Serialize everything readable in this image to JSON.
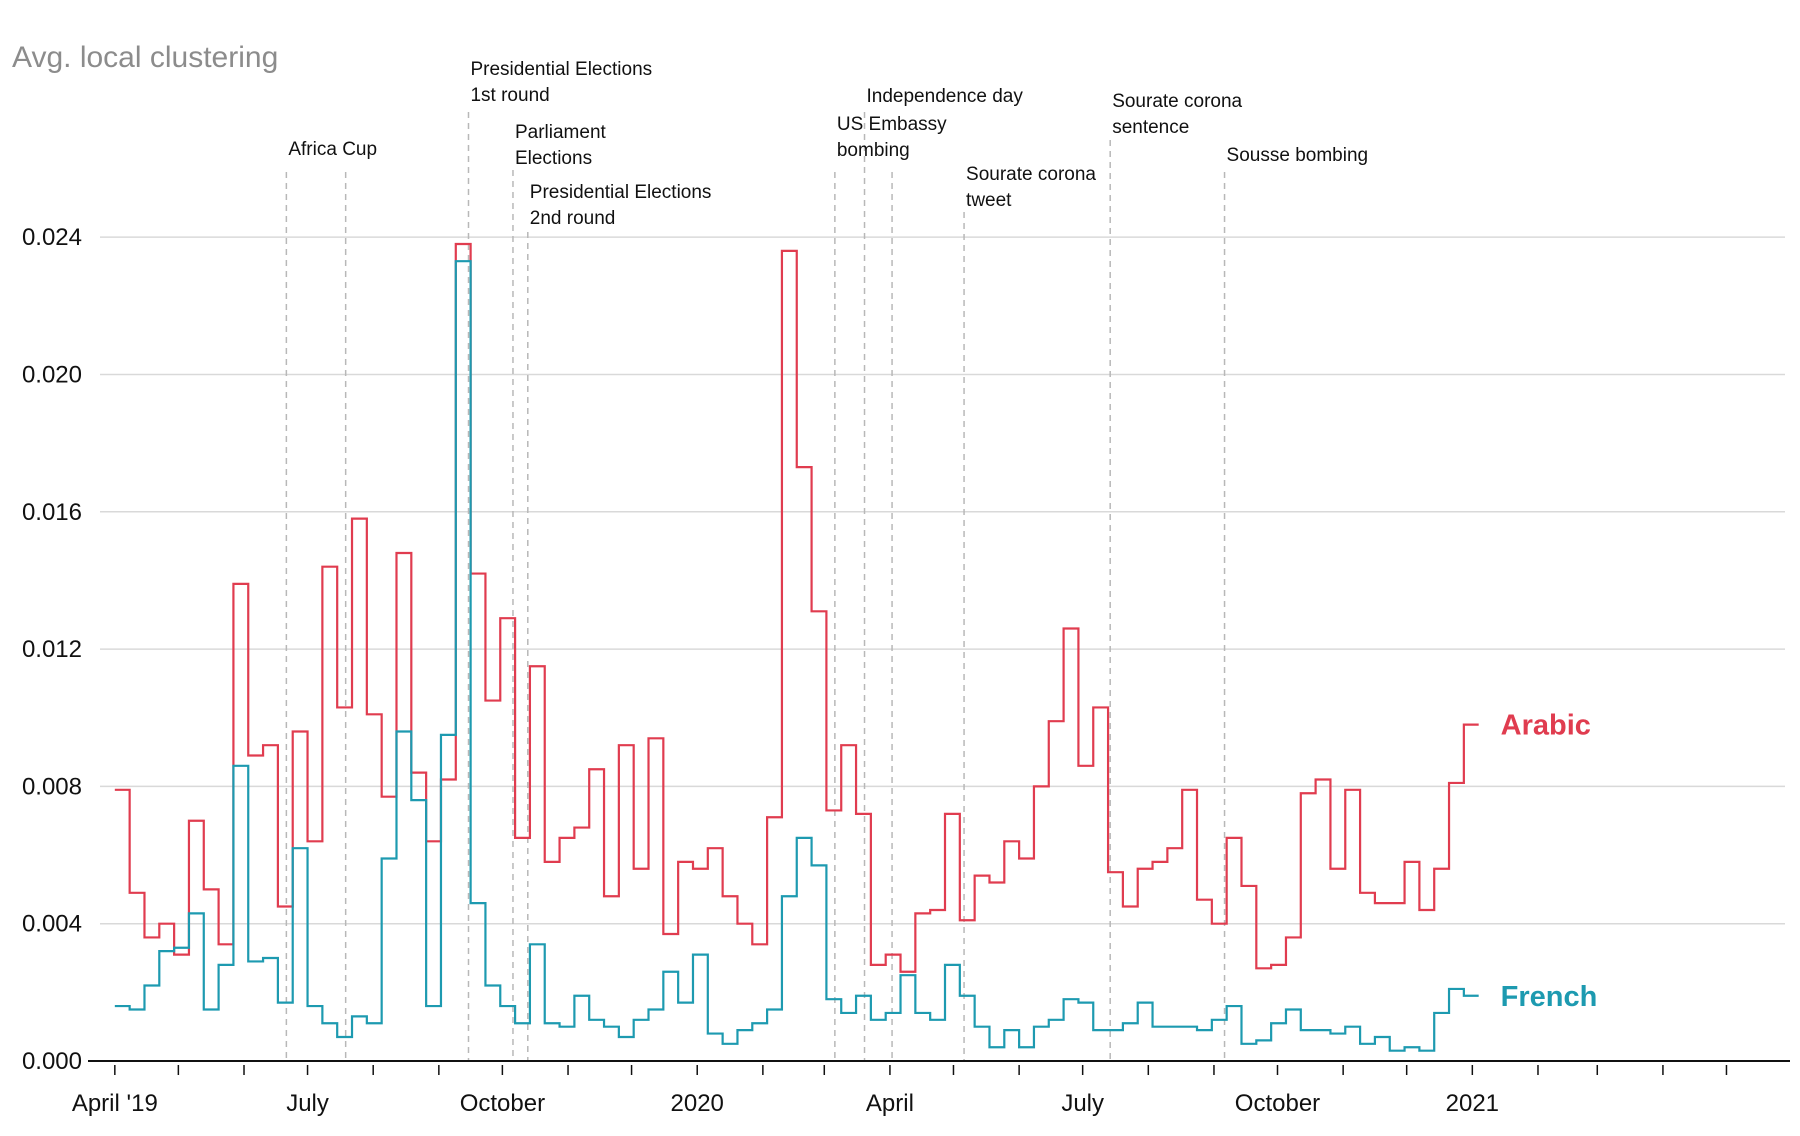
{
  "chart_data": {
    "type": "line",
    "step": true,
    "title": "Avg. local clustering",
    "ylim": [
      0,
      0.0245
    ],
    "yticks": [
      0,
      0.004,
      0.008,
      0.012,
      0.016,
      0.02,
      0.024
    ],
    "ytick_labels": [
      "0.000",
      "0.004",
      "0.008",
      "0.012",
      "0.016",
      "0.020",
      "0.024"
    ],
    "xlim": [
      "2019-03-25",
      "2021-05-31"
    ],
    "xtick_labels": [
      {
        "date": "2019-04-01",
        "label": "April '19"
      },
      {
        "date": "2019-07-01",
        "label": "July"
      },
      {
        "date": "2019-10-01",
        "label": "October"
      },
      {
        "date": "2020-01-01",
        "label": "2020"
      },
      {
        "date": "2020-04-01",
        "label": "April"
      },
      {
        "date": "2020-07-01",
        "label": "July"
      },
      {
        "date": "2020-10-01",
        "label": "October"
      },
      {
        "date": "2021-01-01",
        "label": "2021"
      }
    ],
    "grid": true,
    "events": [
      {
        "date": "2019-06-21",
        "label": [
          "Africa Cup"
        ]
      },
      {
        "date": "2019-07-19",
        "label": []
      },
      {
        "date": "2019-09-15",
        "label": [
          "Presidential Elections",
          "1st round"
        ]
      },
      {
        "date": "2019-10-06",
        "label": [
          "Parliament",
          "Elections"
        ]
      },
      {
        "date": "2019-10-13",
        "label": [
          "Presidential Elections",
          "2nd round"
        ]
      },
      {
        "date": "2020-03-20",
        "label": [
          "Independence day"
        ]
      },
      {
        "date": "2020-04-02",
        "label": []
      },
      {
        "date": "2020-03-06",
        "label": [
          "US Embassy",
          "bombing"
        ]
      },
      {
        "date": "2020-05-06",
        "label": [
          "Sourate corona",
          "tweet"
        ]
      },
      {
        "date": "2020-07-14",
        "label": [
          "Sourate corona",
          "sentence"
        ]
      },
      {
        "date": "2020-09-06",
        "label": [
          "Sousse bombing"
        ]
      }
    ],
    "series": [
      {
        "name": "Arabic",
        "color": "#e03c4f",
        "step_days": 7,
        "x_start": "2019-04-01",
        "values": [
          0.0079,
          0.0049,
          0.0036,
          0.004,
          0.0031,
          0.007,
          0.005,
          0.0034,
          0.0139,
          0.0089,
          0.0092,
          0.0045,
          0.0096,
          0.0064,
          0.0144,
          0.0103,
          0.0158,
          0.0101,
          0.0077,
          0.0148,
          0.0084,
          0.0064,
          0.0082,
          0.0238,
          0.0142,
          0.0105,
          0.0129,
          0.0065,
          0.0115,
          0.0058,
          0.0065,
          0.0068,
          0.0085,
          0.0048,
          0.0092,
          0.0056,
          0.0094,
          0.0037,
          0.0058,
          0.0056,
          0.0062,
          0.0048,
          0.004,
          0.0034,
          0.0071,
          0.0236,
          0.0173,
          0.0131,
          0.0073,
          0.0092,
          0.0072,
          0.0028,
          0.0031,
          0.0026,
          0.0043,
          0.0044,
          0.0072,
          0.0041,
          0.0054,
          0.0052,
          0.0064,
          0.0059,
          0.008,
          0.0099,
          0.0126,
          0.0086,
          0.0103,
          0.0055,
          0.0045,
          0.0056,
          0.0058,
          0.0062,
          0.0079,
          0.0047,
          0.004,
          0.0065,
          0.0051,
          0.0027,
          0.0028,
          0.0036,
          0.0078,
          0.0082,
          0.0056,
          0.0079,
          0.0049,
          0.0046,
          0.0046,
          0.0058,
          0.0044,
          0.0056,
          0.0081,
          0.0098
        ]
      },
      {
        "name": "French",
        "color": "#1d9ab0",
        "step_days": 7,
        "x_start": "2019-04-01",
        "values": [
          0.0016,
          0.0015,
          0.0022,
          0.0032,
          0.0033,
          0.0043,
          0.0015,
          0.0028,
          0.0086,
          0.0029,
          0.003,
          0.0017,
          0.0062,
          0.0016,
          0.0011,
          0.0007,
          0.0013,
          0.0011,
          0.0059,
          0.0096,
          0.0076,
          0.0016,
          0.0095,
          0.0233,
          0.0046,
          0.0022,
          0.0016,
          0.0011,
          0.0034,
          0.0011,
          0.001,
          0.0019,
          0.0012,
          0.001,
          0.0007,
          0.0012,
          0.0015,
          0.0026,
          0.0017,
          0.0031,
          0.0008,
          0.0005,
          0.0009,
          0.0011,
          0.0015,
          0.0048,
          0.0065,
          0.0057,
          0.0018,
          0.0014,
          0.0019,
          0.0012,
          0.0014,
          0.0025,
          0.0014,
          0.0012,
          0.0028,
          0.0019,
          0.001,
          0.0004,
          0.0009,
          0.0004,
          0.001,
          0.0012,
          0.0018,
          0.0017,
          0.0009,
          0.0009,
          0.0011,
          0.0017,
          0.001,
          0.001,
          0.001,
          0.0009,
          0.0012,
          0.0016,
          0.0005,
          0.0006,
          0.0011,
          0.0015,
          0.0009,
          0.0009,
          0.0008,
          0.001,
          0.0005,
          0.0007,
          0.0003,
          0.0004,
          0.0003,
          0.0014,
          0.0021,
          0.0019
        ]
      }
    ],
    "legend": "inline-right"
  }
}
